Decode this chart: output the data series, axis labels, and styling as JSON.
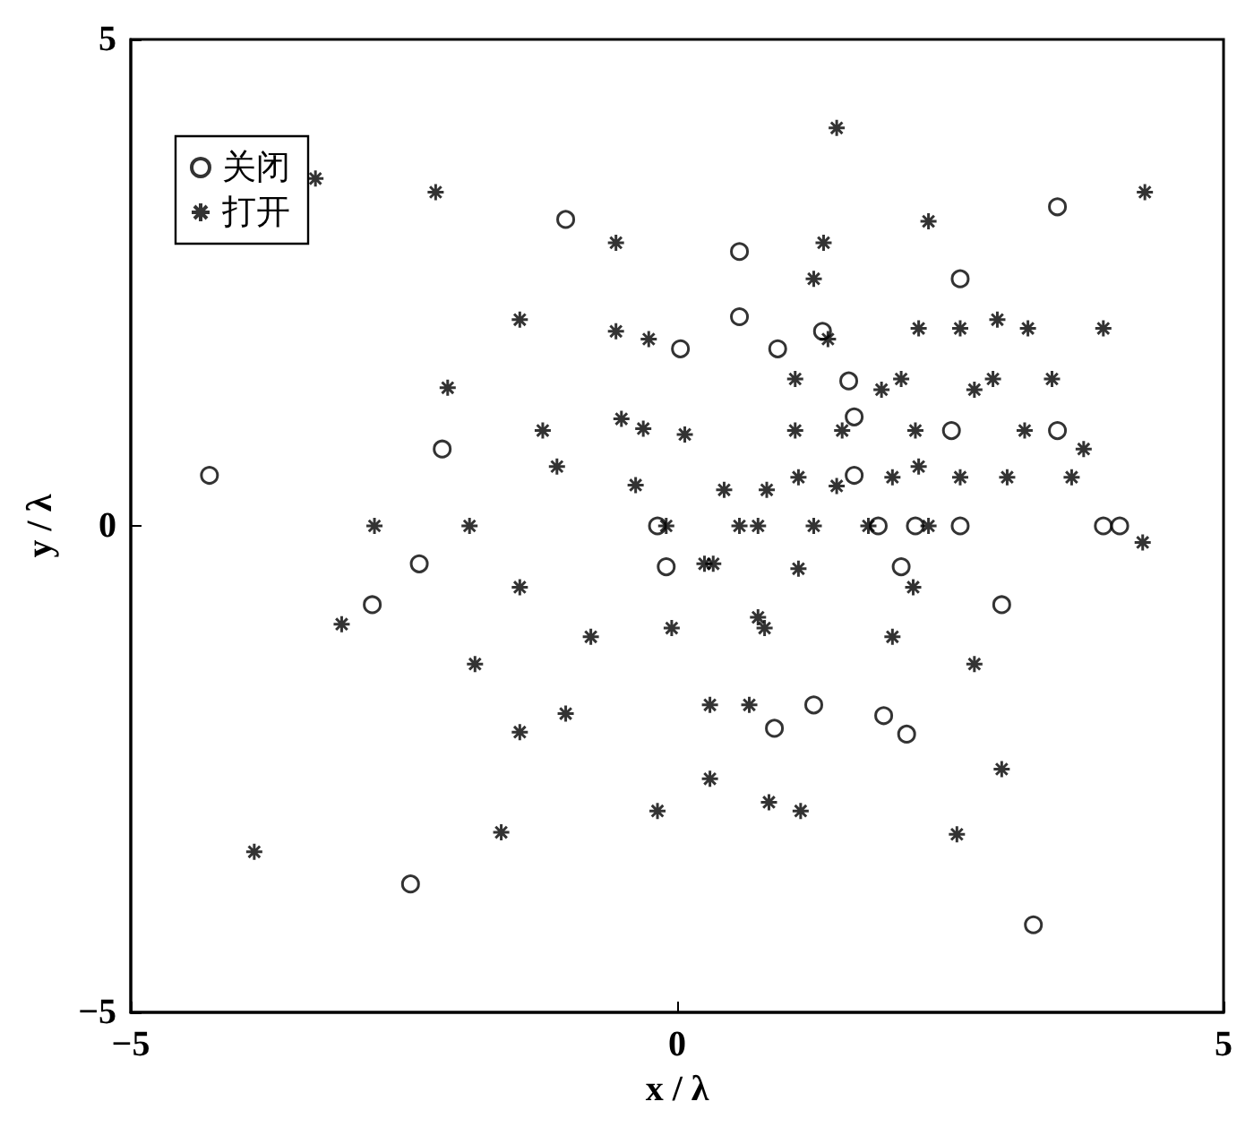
{
  "chart_data": {
    "type": "scatter",
    "xlabel": "x / λ",
    "ylabel": "y / λ",
    "xlim": [
      -5,
      5
    ],
    "ylim": [
      -5,
      5
    ],
    "xticks": [
      -5,
      0,
      5
    ],
    "yticks": [
      -5,
      0,
      5
    ],
    "grid": false,
    "legend": "top left",
    "series": [
      {
        "name": "关闭",
        "color": "#000000",
        "marker": "circle",
        "x": [
          -4.28,
          -2.79,
          -2.36,
          -2.15,
          -2.44,
          -1.02,
          0.03,
          -0.18,
          -0.1,
          0.57,
          0.57,
          0.92,
          1.33,
          1.57,
          1.62,
          1.62,
          1.84,
          2.18,
          2.59,
          2.51,
          2.59,
          3.48,
          3.48,
          3.9,
          4.05,
          2.05,
          0.89,
          1.25,
          1.89,
          2.1,
          2.97,
          3.26
        ],
        "values": [
          0.52,
          -0.81,
          -0.39,
          0.79,
          -3.68,
          3.15,
          1.82,
          0,
          -0.42,
          2.82,
          2.15,
          1.82,
          2.0,
          1.49,
          1.12,
          0.52,
          0,
          0,
          0,
          0.98,
          2.54,
          3.28,
          0.98,
          0,
          0,
          -0.42,
          -2.08,
          -1.84,
          -1.95,
          -2.14,
          -0.81,
          -4.1
        ]
      },
      {
        "name": "打开",
        "color": "#000000",
        "marker": "cross",
        "x": [
          -3.31,
          -2.21,
          -3.87,
          -3.07,
          -2.77,
          -2.1,
          -1.9,
          -1.85,
          -1.61,
          -1.44,
          -1.44,
          -1.44,
          -1.23,
          -1.1,
          -1.02,
          -0.79,
          -0.56,
          -0.56,
          -0.51,
          -0.38,
          -0.31,
          -0.26,
          -0.18,
          -0.05,
          -0.1,
          0.07,
          0.43,
          0.82,
          1.11,
          1.46,
          1.08,
          1.51,
          1.08,
          1.25,
          1.34,
          1.38,
          1.46,
          1.87,
          2.05,
          2.21,
          2.3,
          2.59,
          2.93,
          3.21,
          3.9,
          4.28,
          2.72,
          2.89,
          3.43,
          2.18,
          3.18,
          3.72,
          1.97,
          2.21,
          2.59,
          3.02,
          3.61,
          0.57,
          0.74,
          1.25,
          1.75,
          2.3,
          4.26,
          0.25,
          0.33,
          1.11,
          2.16,
          0.74,
          0.8,
          1.97,
          2.72,
          0.3,
          0.66,
          2.97,
          0.3,
          0.84,
          1.13,
          2.56
        ],
        "values": [
          3.57,
          3.43,
          -3.35,
          -1.01,
          0,
          1.42,
          0,
          -1.42,
          -3.15,
          2.12,
          -0.63,
          -2.12,
          0.98,
          0.61,
          -1.93,
          -1.14,
          2.91,
          2.0,
          1.1,
          0.42,
          1.0,
          1.92,
          -2.93,
          -1.05,
          0,
          0.94,
          0.37,
          0.37,
          0.5,
          0.41,
          0.98,
          0.98,
          1.51,
          2.54,
          2.91,
          1.92,
          4.09,
          1.4,
          1.51,
          2.03,
          3.13,
          2.03,
          2.12,
          2.03,
          2.03,
          3.43,
          1.4,
          1.51,
          1.51,
          0.98,
          0.98,
          0.79,
          0.5,
          0.61,
          0.5,
          0.5,
          0.5,
          0,
          0,
          0,
          0,
          0,
          -0.17,
          -0.39,
          -0.39,
          -0.44,
          -0.63,
          -0.94,
          -1.05,
          -1.14,
          -1.42,
          -1.84,
          -1.84,
          -2.5,
          -2.6,
          -2.84,
          -2.93,
          -3.17
        ]
      }
    ]
  }
}
